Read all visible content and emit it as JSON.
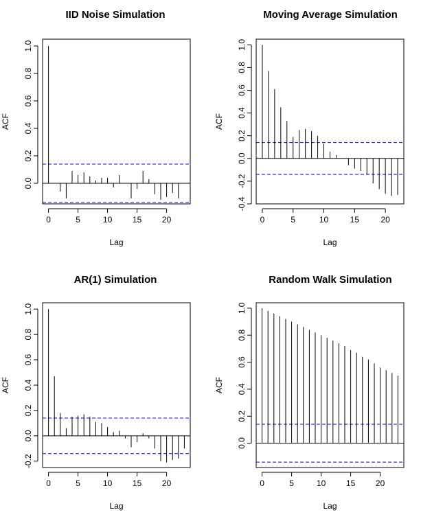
{
  "chart_data": [
    {
      "type": "bar",
      "title": "IID Noise Simulation",
      "xlabel": "Lag",
      "ylabel": "ACF",
      "xlim": [
        -1,
        24
      ],
      "ylim": [
        -0.15,
        1.05
      ],
      "xticks": [
        0,
        5,
        10,
        15,
        20
      ],
      "yticks": [
        0.0,
        0.2,
        0.4,
        0.6,
        0.8,
        1.0
      ],
      "ytick_labels": [
        "0.0",
        "0.2",
        "0.4",
        "0.6",
        "0.8",
        "1.0"
      ],
      "lags": [
        0,
        1,
        2,
        3,
        4,
        5,
        6,
        7,
        8,
        9,
        10,
        11,
        12,
        13,
        14,
        15,
        16,
        17,
        18,
        19,
        20,
        21,
        22,
        23
      ],
      "values": [
        1.0,
        0.0,
        -0.06,
        -0.11,
        0.09,
        0.06,
        0.08,
        0.05,
        0.02,
        0.04,
        0.04,
        -0.03,
        0.06,
        0.0,
        -0.11,
        -0.04,
        0.09,
        0.03,
        -0.08,
        -0.12,
        -0.1,
        -0.07,
        -0.11,
        0.0
      ],
      "conf_band": [
        0.14,
        -0.14
      ],
      "zero_line": true,
      "grid": false
    },
    {
      "type": "bar",
      "title": "Moving Average Simulation",
      "xlabel": "Lag",
      "ylabel": "ACF",
      "xlim": [
        -1,
        23
      ],
      "ylim": [
        -0.4,
        1.05
      ],
      "xticks": [
        0,
        5,
        10,
        15,
        20
      ],
      "yticks": [
        -0.4,
        -0.2,
        0.0,
        0.2,
        0.4,
        0.6,
        0.8,
        1.0
      ],
      "ytick_labels": [
        "-0.4",
        "-0.2",
        "0.0",
        "0.2",
        "0.4",
        "0.6",
        "0.8",
        "1.0"
      ],
      "lags": [
        0,
        1,
        2,
        3,
        4,
        5,
        6,
        7,
        8,
        9,
        10,
        11,
        12,
        13,
        14,
        15,
        16,
        17,
        18,
        19,
        20,
        21,
        22
      ],
      "values": [
        1.0,
        0.77,
        0.61,
        0.45,
        0.33,
        0.19,
        0.25,
        0.26,
        0.24,
        0.2,
        0.13,
        0.06,
        0.03,
        0.0,
        -0.06,
        -0.09,
        -0.11,
        -0.14,
        -0.22,
        -0.27,
        -0.31,
        -0.33,
        -0.32
      ],
      "conf_band": [
        0.14,
        -0.14
      ],
      "zero_line": true,
      "grid": false
    },
    {
      "type": "bar",
      "title": "AR(1) Simulation",
      "xlabel": "Lag",
      "ylabel": "ACF",
      "xlim": [
        -1,
        24
      ],
      "ylim": [
        -0.25,
        1.05
      ],
      "xticks": [
        0,
        5,
        10,
        15,
        20
      ],
      "yticks": [
        -0.2,
        0.0,
        0.2,
        0.4,
        0.6,
        0.8,
        1.0
      ],
      "ytick_labels": [
        "-0.2",
        "0.0",
        "0.2",
        "0.4",
        "0.6",
        "0.8",
        "1.0"
      ],
      "lags": [
        0,
        1,
        2,
        3,
        4,
        5,
        6,
        7,
        8,
        9,
        10,
        11,
        12,
        13,
        14,
        15,
        16,
        17,
        18,
        19,
        20,
        21,
        22,
        23
      ],
      "values": [
        1.0,
        0.47,
        0.18,
        0.06,
        0.15,
        0.16,
        0.17,
        0.15,
        0.11,
        0.1,
        0.07,
        0.03,
        0.04,
        -0.02,
        -0.09,
        -0.05,
        0.02,
        -0.02,
        -0.1,
        -0.2,
        -0.21,
        -0.19,
        -0.18,
        -0.1
      ],
      "conf_band": [
        0.14,
        -0.14
      ],
      "zero_line": true,
      "grid": false
    },
    {
      "type": "bar",
      "title": "Random Walk Simulation",
      "xlabel": "Lag",
      "ylabel": "ACF",
      "xlim": [
        -1,
        24
      ],
      "ylim": [
        -0.18,
        1.04
      ],
      "xticks": [
        0,
        5,
        10,
        15,
        20
      ],
      "yticks": [
        0.0,
        0.2,
        0.4,
        0.6,
        0.8,
        1.0
      ],
      "ytick_labels": [
        "0.0",
        "0.2",
        "0.4",
        "0.6",
        "0.8",
        "1.0"
      ],
      "lags": [
        0,
        1,
        2,
        3,
        4,
        5,
        6,
        7,
        8,
        9,
        10,
        11,
        12,
        13,
        14,
        15,
        16,
        17,
        18,
        19,
        20,
        21,
        22,
        23
      ],
      "values": [
        1.0,
        0.98,
        0.96,
        0.94,
        0.92,
        0.9,
        0.88,
        0.86,
        0.84,
        0.82,
        0.8,
        0.78,
        0.76,
        0.74,
        0.72,
        0.69,
        0.67,
        0.64,
        0.62,
        0.59,
        0.56,
        0.54,
        0.52,
        0.5
      ],
      "conf_band": [
        0.14,
        -0.14
      ],
      "zero_line": true,
      "grid": false
    }
  ],
  "colors": {
    "spike": "#000000",
    "conf_band": "#0000cc",
    "axis": "#000000"
  }
}
